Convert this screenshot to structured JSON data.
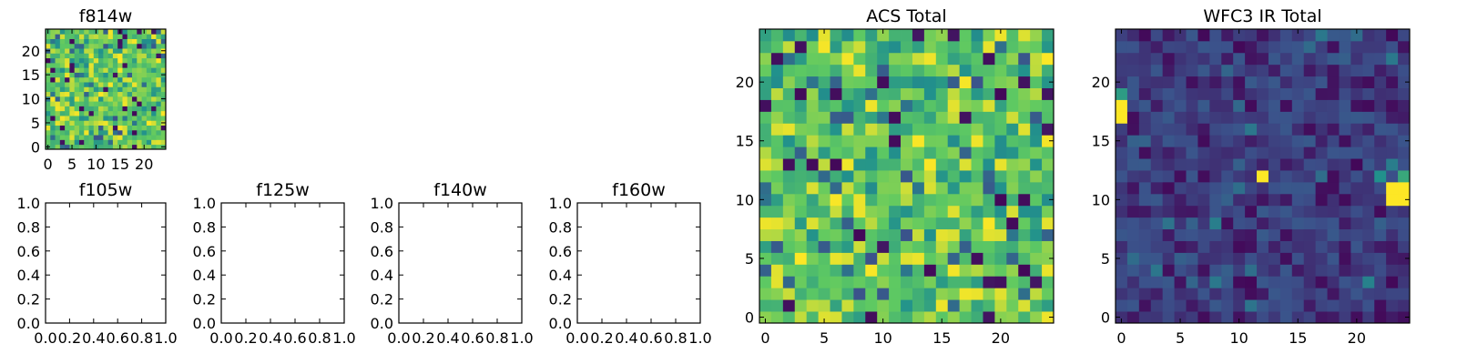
{
  "chart_data": [
    {
      "type": "heatmap",
      "title": "f814w",
      "grid_size": [
        25,
        25
      ],
      "xlim": [
        -0.5,
        24.5
      ],
      "ylim": [
        -0.5,
        24.5
      ],
      "xticks": [
        0,
        5,
        10,
        15,
        20
      ],
      "yticks": [
        0,
        5,
        10,
        15,
        20
      ],
      "xtick_labels": [
        "0",
        "5",
        "10",
        "15",
        "20"
      ],
      "ytick_labels": [
        "0",
        "5",
        "10",
        "15",
        "20"
      ],
      "colormap": [
        "#440154",
        "#3b528b",
        "#21918c",
        "#5ec962",
        "#fde725"
      ],
      "value_range": [
        0,
        1
      ],
      "seed": 11,
      "style": "acs",
      "hot_pixels": []
    },
    {
      "type": "heatmap",
      "title": "f105w",
      "empty": true,
      "xlim": [
        0,
        1
      ],
      "ylim": [
        0,
        1
      ],
      "xticks": [
        0,
        0.2,
        0.4,
        0.6,
        0.8,
        1
      ],
      "yticks": [
        0,
        0.2,
        0.4,
        0.6,
        0.8,
        1
      ],
      "xtick_labels": [
        "0.0",
        "0.2",
        "0.4",
        "0.6",
        "0.8",
        "1.0"
      ],
      "ytick_labels": [
        "0.0",
        "0.2",
        "0.4",
        "0.6",
        "0.8",
        "1.0"
      ]
    },
    {
      "type": "heatmap",
      "title": "f125w",
      "empty": true,
      "xlim": [
        0,
        1
      ],
      "ylim": [
        0,
        1
      ],
      "xticks": [
        0,
        0.2,
        0.4,
        0.6,
        0.8,
        1
      ],
      "yticks": [
        0,
        0.2,
        0.4,
        0.6,
        0.8,
        1
      ],
      "xtick_labels": [
        "0.0",
        "0.2",
        "0.4",
        "0.6",
        "0.8",
        "1.0"
      ],
      "ytick_labels": [
        "0.0",
        "0.2",
        "0.4",
        "0.6",
        "0.8",
        "1.0"
      ]
    },
    {
      "type": "heatmap",
      "title": "f140w",
      "empty": true,
      "xlim": [
        0,
        1
      ],
      "ylim": [
        0,
        1
      ],
      "xticks": [
        0,
        0.2,
        0.4,
        0.6,
        0.8,
        1
      ],
      "yticks": [
        0,
        0.2,
        0.4,
        0.6,
        0.8,
        1
      ],
      "xtick_labels": [
        "0.0",
        "0.2",
        "0.4",
        "0.6",
        "0.8",
        "1.0"
      ],
      "ytick_labels": [
        "0.0",
        "0.2",
        "0.4",
        "0.6",
        "0.8",
        "1.0"
      ]
    },
    {
      "type": "heatmap",
      "title": "f160w",
      "empty": true,
      "xlim": [
        0,
        1
      ],
      "ylim": [
        0,
        1
      ],
      "xticks": [
        0,
        0.2,
        0.4,
        0.6,
        0.8,
        1
      ],
      "yticks": [
        0,
        0.2,
        0.4,
        0.6,
        0.8,
        1
      ],
      "xtick_labels": [
        "0.0",
        "0.2",
        "0.4",
        "0.6",
        "0.8",
        "1.0"
      ],
      "ytick_labels": [
        "0.0",
        "0.2",
        "0.4",
        "0.6",
        "0.8",
        "1.0"
      ]
    },
    {
      "type": "heatmap",
      "title": "ACS Total",
      "grid_size": [
        25,
        25
      ],
      "xlim": [
        -0.5,
        24.5
      ],
      "ylim": [
        -0.5,
        24.5
      ],
      "xticks": [
        0,
        5,
        10,
        15,
        20
      ],
      "yticks": [
        0,
        5,
        10,
        15,
        20
      ],
      "xtick_labels": [
        "0",
        "5",
        "10",
        "15",
        "20"
      ],
      "ytick_labels": [
        "0",
        "5",
        "10",
        "15",
        "20"
      ],
      "colormap": [
        "#440154",
        "#3b528b",
        "#21918c",
        "#5ec962",
        "#fde725"
      ],
      "value_range": [
        0,
        1
      ],
      "seed": 29,
      "style": "acs",
      "hot_pixels": []
    },
    {
      "type": "heatmap",
      "title": "WFC3 IR Total",
      "grid_size": [
        25,
        25
      ],
      "xlim": [
        -0.5,
        24.5
      ],
      "ylim": [
        -0.5,
        24.5
      ],
      "xticks": [
        0,
        5,
        10,
        15,
        20
      ],
      "yticks": [
        0,
        5,
        10,
        15,
        20
      ],
      "xtick_labels": [
        "0",
        "5",
        "10",
        "15",
        "20"
      ],
      "ytick_labels": [
        "0",
        "5",
        "10",
        "15",
        "20"
      ],
      "colormap": [
        "#440154",
        "#3b528b",
        "#21918c",
        "#5ec962",
        "#fde725"
      ],
      "value_range": [
        0,
        1
      ],
      "seed": 53,
      "style": "ir",
      "hot_pixels": [
        {
          "x": 0,
          "y": 17,
          "v": 1.0
        },
        {
          "x": 0,
          "y": 18,
          "v": 1.0
        },
        {
          "x": 0,
          "y": 19,
          "v": 0.55
        },
        {
          "x": 12,
          "y": 12,
          "v": 1.0
        },
        {
          "x": 23,
          "y": 11,
          "v": 1.0
        },
        {
          "x": 24,
          "y": 11,
          "v": 1.0
        },
        {
          "x": 23,
          "y": 10,
          "v": 1.0
        },
        {
          "x": 24,
          "y": 10,
          "v": 1.0
        },
        {
          "x": 22,
          "y": 12,
          "v": 0.5
        },
        {
          "x": 24,
          "y": 12,
          "v": 0.6
        }
      ]
    }
  ]
}
